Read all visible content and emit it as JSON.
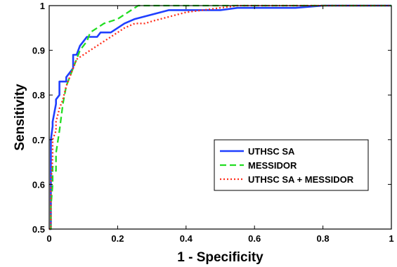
{
  "chart_data": {
    "type": "line",
    "xlabel": "1 - Specificity",
    "ylabel": "Sensitivity",
    "xlim": [
      0,
      1
    ],
    "ylim": [
      0.5,
      1
    ],
    "xticks": [
      0,
      0.2,
      0.4,
      0.6,
      0.8,
      1
    ],
    "xtick_labels": [
      "0",
      "0.2",
      "0.4",
      "0.6",
      "0.8",
      "1"
    ],
    "yticks": [
      0.5,
      0.6,
      0.7,
      0.8,
      0.9,
      1
    ],
    "ytick_labels": [
      "0.5",
      "0.6",
      "0.7",
      "0.8",
      "0.9",
      "1"
    ],
    "grid": false,
    "legend_position": "lower-right",
    "series": [
      {
        "name": "UTHSC SA",
        "color": "#1f3fff",
        "style": "solid",
        "x": [
          0,
          0.005,
          0.005,
          0.01,
          0.01,
          0.02,
          0.02,
          0.03,
          0.03,
          0.05,
          0.05,
          0.06,
          0.07,
          0.07,
          0.08,
          0.09,
          0.1,
          0.11,
          0.12,
          0.14,
          0.15,
          0.17,
          0.18,
          0.2,
          0.22,
          0.25,
          0.3,
          0.35,
          0.4,
          0.45,
          0.5,
          0.55,
          0.6,
          0.65,
          0.7,
          0.72,
          0.8,
          0.9,
          1.0
        ],
        "y": [
          0.5,
          0.5,
          0.7,
          0.73,
          0.74,
          0.78,
          0.79,
          0.8,
          0.83,
          0.83,
          0.84,
          0.85,
          0.86,
          0.89,
          0.89,
          0.91,
          0.92,
          0.93,
          0.93,
          0.93,
          0.94,
          0.94,
          0.94,
          0.95,
          0.96,
          0.97,
          0.98,
          0.99,
          0.99,
          0.99,
          0.99,
          0.995,
          0.995,
          0.995,
          0.995,
          0.995,
          1.0,
          1.0,
          1.0
        ]
      },
      {
        "name": "MESSIDOR",
        "color": "#22dd22",
        "style": "dashed",
        "x": [
          0,
          0.005,
          0.005,
          0.01,
          0.01,
          0.02,
          0.02,
          0.03,
          0.04,
          0.05,
          0.06,
          0.07,
          0.08,
          0.09,
          0.1,
          0.11,
          0.12,
          0.14,
          0.16,
          0.2,
          0.22,
          0.24,
          0.26,
          0.28,
          0.3,
          0.4,
          0.5,
          0.6,
          0.8,
          1.0
        ],
        "y": [
          0.5,
          0.5,
          0.55,
          0.6,
          0.64,
          0.63,
          0.67,
          0.72,
          0.78,
          0.82,
          0.84,
          0.86,
          0.88,
          0.9,
          0.91,
          0.92,
          0.94,
          0.95,
          0.96,
          0.97,
          0.98,
          0.99,
          1.0,
          1.0,
          1.0,
          1.0,
          1.0,
          1.0,
          1.0,
          1.0
        ]
      },
      {
        "name": "UTHSC SA + MESSIDOR",
        "color": "#ff2d1a",
        "style": "dotted",
        "x": [
          0,
          0.005,
          0.005,
          0.01,
          0.01,
          0.02,
          0.02,
          0.03,
          0.04,
          0.05,
          0.06,
          0.07,
          0.08,
          0.1,
          0.12,
          0.14,
          0.16,
          0.18,
          0.2,
          0.22,
          0.25,
          0.28,
          0.3,
          0.35,
          0.4,
          0.45,
          0.5,
          0.55,
          0.6,
          0.7,
          0.8,
          0.9,
          1.0
        ],
        "y": [
          0.5,
          0.5,
          0.6,
          0.66,
          0.7,
          0.72,
          0.74,
          0.77,
          0.79,
          0.82,
          0.84,
          0.86,
          0.88,
          0.89,
          0.9,
          0.91,
          0.92,
          0.93,
          0.94,
          0.95,
          0.96,
          0.96,
          0.965,
          0.975,
          0.985,
          0.99,
          0.995,
          1.0,
          1.0,
          1.0,
          1.0,
          1.0,
          1.0
        ]
      }
    ]
  }
}
